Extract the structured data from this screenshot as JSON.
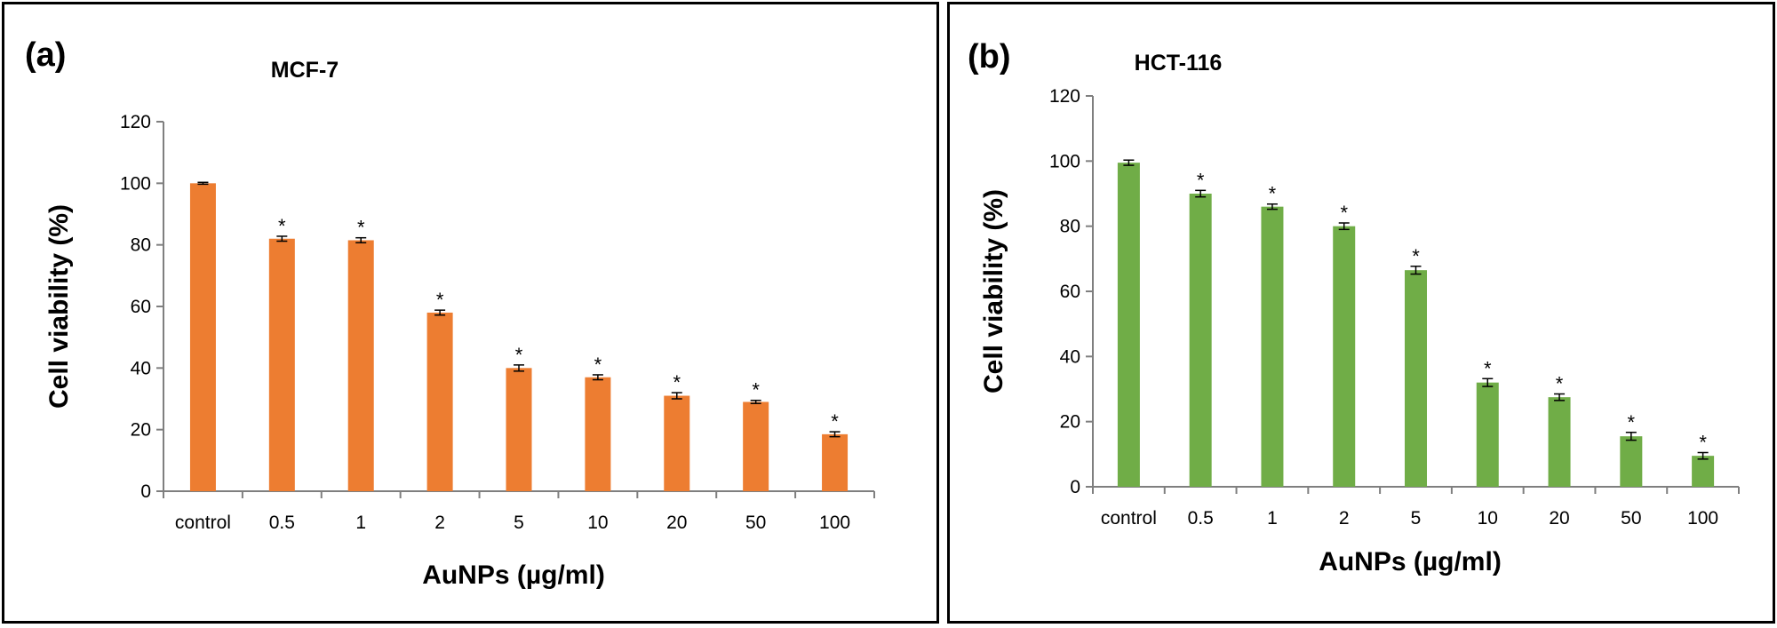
{
  "chart_data": [
    {
      "type": "bar",
      "panel_label": "(a)",
      "title": "MCF-7",
      "xlabel": "AuNPs (µg/ml)",
      "ylabel": "Cell viability  (%)",
      "categories": [
        "control",
        "0.5",
        "1",
        "2",
        "5",
        "10",
        "20",
        "50",
        "100"
      ],
      "values": [
        100,
        82,
        81.5,
        58,
        40,
        37,
        31,
        29,
        18.5
      ],
      "errors": [
        0.3,
        0.8,
        0.8,
        0.8,
        1.0,
        0.8,
        1.0,
        0.5,
        0.8
      ],
      "significance": [
        "",
        "*",
        "*",
        "*",
        "*",
        "*",
        "*",
        "*",
        "*"
      ],
      "ylim": [
        0,
        120
      ],
      "yticks": [
        0,
        20,
        40,
        60,
        80,
        100,
        120
      ],
      "color": "#ED7D31",
      "grid": false
    },
    {
      "type": "bar",
      "panel_label": "(b)",
      "title": "HCT-116",
      "xlabel": "AuNPs (µg/ml)",
      "ylabel": "Cell viability  (%)",
      "categories": [
        "control",
        "0.5",
        "1",
        "2",
        "5",
        "10",
        "20",
        "50",
        "100"
      ],
      "values": [
        99.5,
        90,
        86,
        80,
        66.5,
        32,
        27.5,
        15.5,
        9.5
      ],
      "errors": [
        0.8,
        1.0,
        0.8,
        1.0,
        1.2,
        1.2,
        1.0,
        1.2,
        1.0
      ],
      "significance": [
        "",
        "*",
        "*",
        "*",
        "*",
        "*",
        "*",
        "*",
        "*"
      ],
      "ylim": [
        0,
        120
      ],
      "yticks": [
        0,
        20,
        40,
        60,
        80,
        100,
        120
      ],
      "color": "#70AD47",
      "grid": false
    }
  ]
}
